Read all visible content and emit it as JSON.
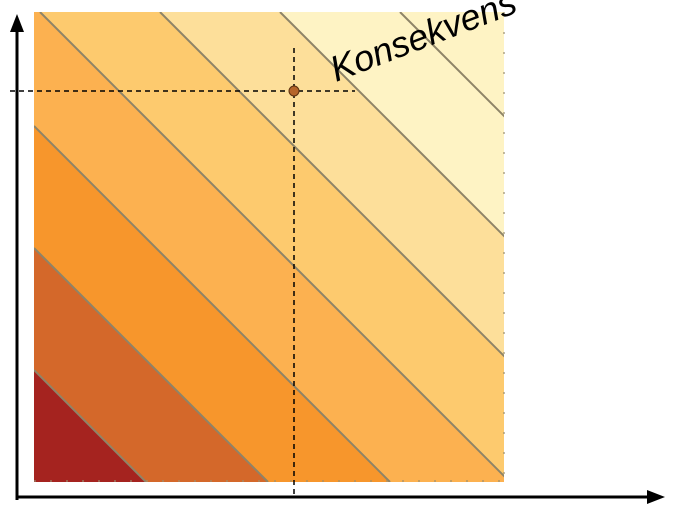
{
  "diagram": {
    "title_label": "Konsekvens",
    "band_colors": [
      "#a5231f",
      "#d4682a",
      "#f7962c",
      "#fcb150",
      "#fdca6e",
      "#fddf9a",
      "#fef3c4"
    ],
    "contour_line_color": "#8e8468",
    "axis_color": "#000000",
    "guide_line_color": "#000000",
    "marker_color": "#b5652a"
  }
}
